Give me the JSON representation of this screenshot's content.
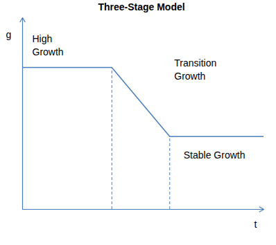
{
  "chart_data": {
    "type": "line",
    "title": "Three-Stage Model",
    "x_label": "t",
    "y_label": "g",
    "x": [
      0,
      3.7,
      6.1,
      10
    ],
    "values": [
      7.4,
      7.4,
      3.8,
      3.8
    ],
    "xlim": [
      0,
      10
    ],
    "ylim": [
      0,
      10
    ],
    "annotations": [
      "High\nGrowth",
      "Transition\nGrowth",
      "Stable Growth"
    ],
    "color": "#4a7ebb",
    "tick_labels": false
  }
}
